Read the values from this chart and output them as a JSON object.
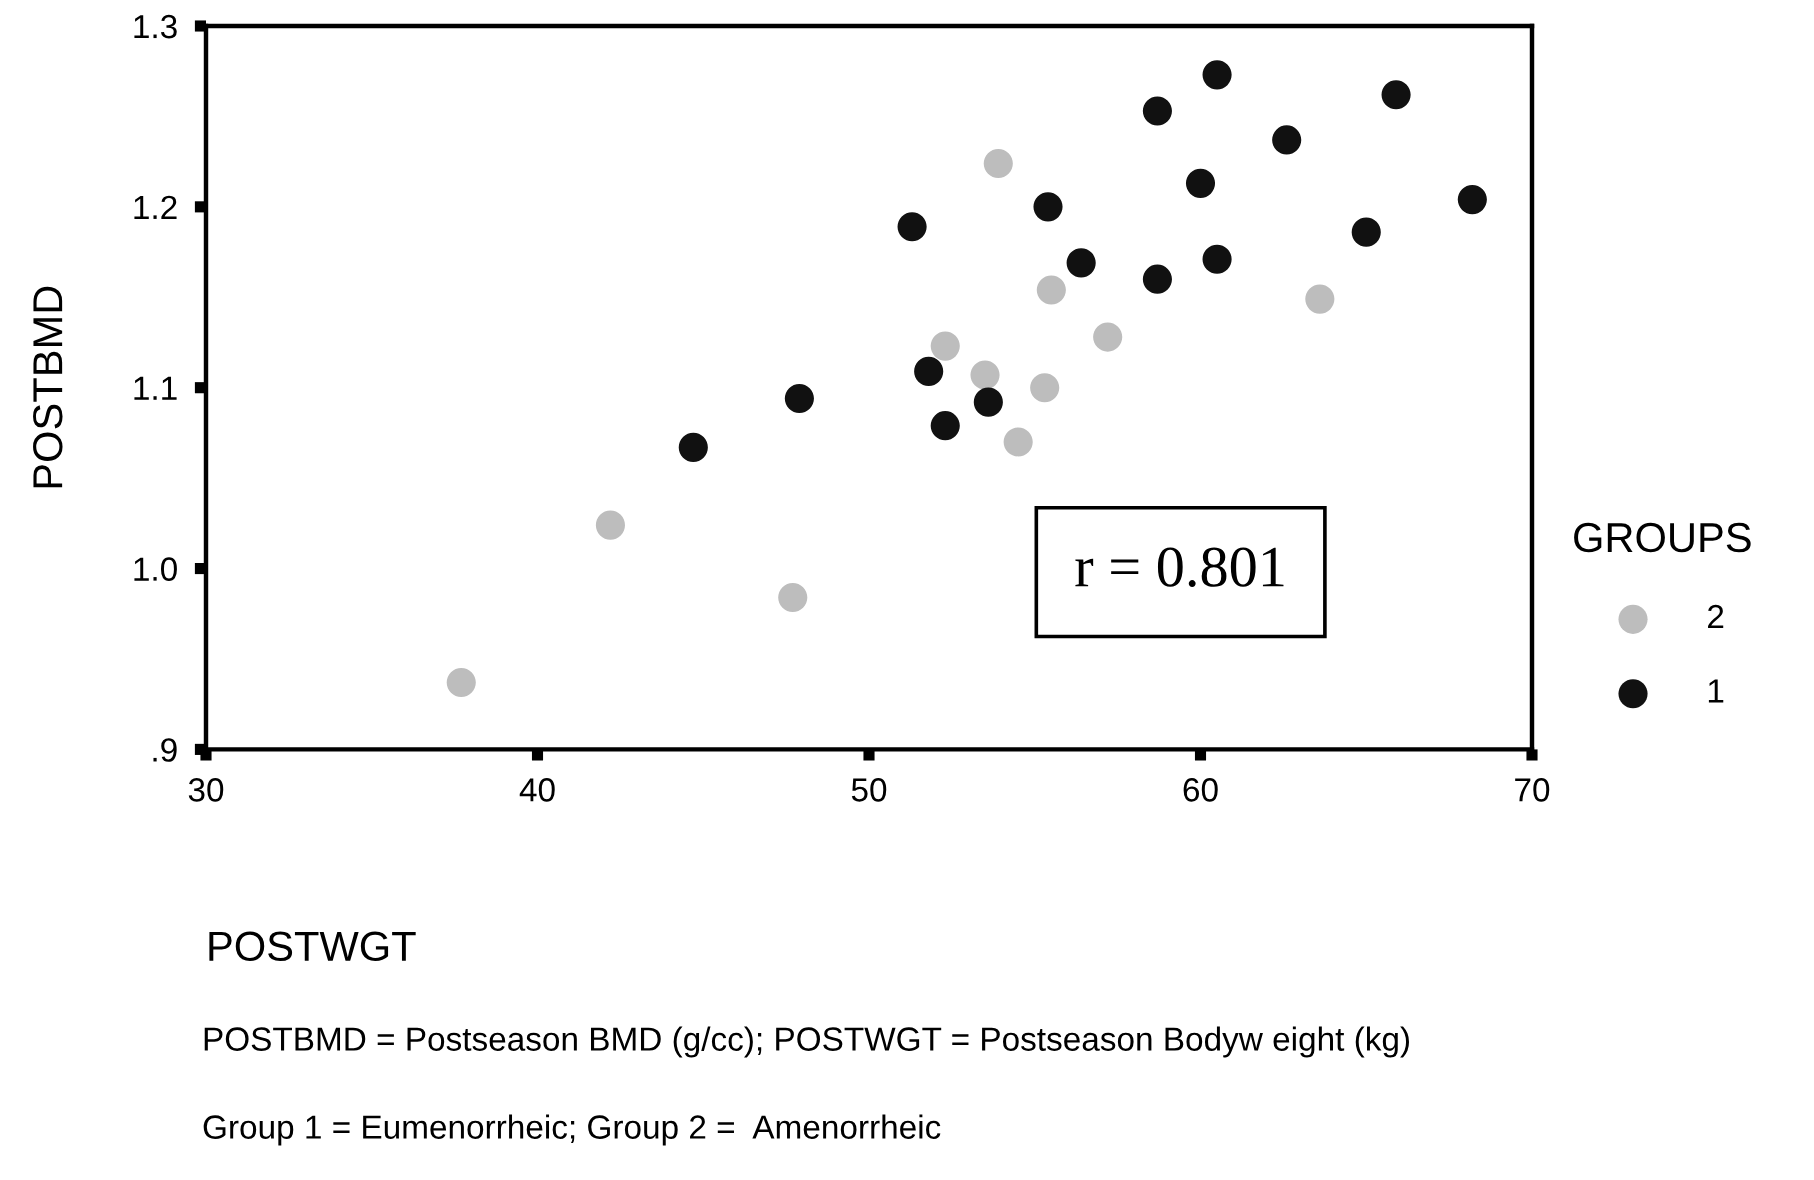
{
  "chart_data": {
    "type": "scatter",
    "xlabel": "POSTWGT",
    "ylabel": "POSTBMD",
    "legend_title": "GROUPS",
    "series": [
      {
        "name": "2",
        "color": "#bdbdbd",
        "x": [
          37.7,
          42.2,
          47.7,
          53.9,
          55.5,
          63.6,
          57.2,
          52.3,
          53.5,
          55.3,
          54.5
        ],
        "values": [
          0.937,
          1.024,
          0.984,
          1.224,
          1.154,
          1.149,
          1.128,
          1.123,
          1.107,
          1.1,
          1.07
        ]
      },
      {
        "name": "1",
        "color": "#111111",
        "x": [
          44.7,
          47.9,
          51.3,
          60.5,
          58.7,
          65.9,
          62.6,
          60.0,
          68.2,
          55.4,
          65.0,
          56.4,
          60.5,
          58.7,
          51.8,
          53.6,
          52.3
        ],
        "values": [
          1.067,
          1.094,
          1.189,
          1.273,
          1.253,
          1.262,
          1.237,
          1.213,
          1.204,
          1.2,
          1.186,
          1.169,
          1.171,
          1.16,
          1.109,
          1.092,
          1.079
        ]
      }
    ],
    "xlim": [
      30,
      70
    ],
    "xticks": [
      30,
      40,
      50,
      60,
      70
    ],
    "ylim": [
      0.9,
      1.3
    ],
    "yticks": [
      {
        "value": 0.9,
        "label": ".9"
      },
      {
        "value": 1.0,
        "label": "1.0"
      },
      1.1,
      1.2,
      1.3
    ],
    "marker": "circle",
    "grid": false,
    "legend": "right",
    "annotations": [
      "r = 0.801",
      "POSTBMD = Postseason BMD (g/cc); POSTWGT = Postseason Bodyw eight (kg)",
      "Group 1 = Eumenorrheic; Group 2 =  Amenorrheic"
    ]
  }
}
